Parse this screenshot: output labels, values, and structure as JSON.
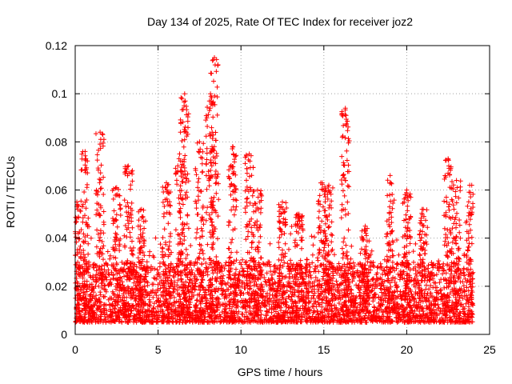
{
  "chart_data": {
    "type": "scatter",
    "title": "Day 134 of 2025, Rate Of TEC Index for receiver joz2",
    "xlabel": "GPS time / hours",
    "ylabel": "ROTI / TECUs",
    "xlim": [
      0,
      25
    ],
    "ylim": [
      0,
      0.12
    ],
    "x_ticks": [
      "0",
      "5",
      "10",
      "15",
      "20",
      "25"
    ],
    "y_ticks": [
      "0",
      "0.02",
      "0.04",
      "0.06",
      "0.08",
      "0.1",
      "0.12"
    ],
    "grid": true,
    "marker": "plus",
    "color": "#ff0000",
    "x_data_range": [
      0,
      24
    ],
    "baseline_range": [
      0.005,
      0.03
    ],
    "peaks": [
      {
        "x": 0.1,
        "y": 0.055
      },
      {
        "x": 0.6,
        "y": 0.076
      },
      {
        "x": 1.5,
        "y": 0.084
      },
      {
        "x": 2.5,
        "y": 0.061
      },
      {
        "x": 3.2,
        "y": 0.07
      },
      {
        "x": 4.0,
        "y": 0.052
      },
      {
        "x": 5.5,
        "y": 0.063
      },
      {
        "x": 6.3,
        "y": 0.075
      },
      {
        "x": 6.6,
        "y": 0.1
      },
      {
        "x": 7.5,
        "y": 0.08
      },
      {
        "x": 8.1,
        "y": 0.097
      },
      {
        "x": 8.4,
        "y": 0.115
      },
      {
        "x": 9.5,
        "y": 0.078
      },
      {
        "x": 10.5,
        "y": 0.075
      },
      {
        "x": 11.0,
        "y": 0.06
      },
      {
        "x": 12.5,
        "y": 0.055
      },
      {
        "x": 13.5,
        "y": 0.05
      },
      {
        "x": 14.9,
        "y": 0.063
      },
      {
        "x": 15.3,
        "y": 0.062
      },
      {
        "x": 16.3,
        "y": 0.094
      },
      {
        "x": 17.5,
        "y": 0.045
      },
      {
        "x": 19.0,
        "y": 0.066
      },
      {
        "x": 20.0,
        "y": 0.06
      },
      {
        "x": 21.0,
        "y": 0.052
      },
      {
        "x": 22.5,
        "y": 0.073
      },
      {
        "x": 23.0,
        "y": 0.064
      },
      {
        "x": 23.8,
        "y": 0.062
      }
    ]
  }
}
